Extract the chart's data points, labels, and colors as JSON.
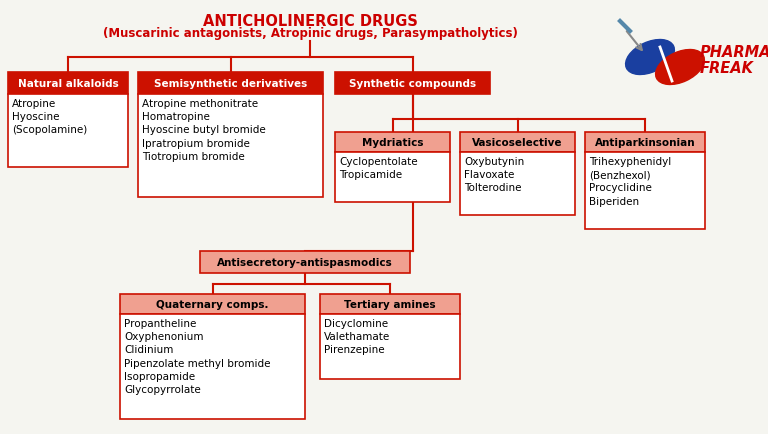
{
  "title_line1": "ANTICHOLINERGIC DRUGS",
  "title_line2": "(Muscarinic antagonists, Atropinic drugs, Parasympatholytics)",
  "title_color": "#cc0000",
  "bg_color": "#f5f5f0",
  "header_fill": "#cc1100",
  "header_text_color": "#ffffff",
  "subheader_fill": "#f0a090",
  "box_fill": "#ffffff",
  "box_edge": "#cc1100",
  "line_color": "#cc1100",
  "natural_header": "Natural alkaloids",
  "natural_items": "Atropine\nHyoscine\n(Scopolamine)",
  "semisyn_header": "Semisynthetic derivatives",
  "semisyn_items": "Atropine methonitrate\nHomatropine\nHyoscine butyl bromide\nIpratropium bromide\nTiotropium bromide",
  "synthetic_header": "Synthetic compounds",
  "mydriatics_header": "Mydriatics",
  "mydriatics_items": "Cyclopentolate\nTropicamide",
  "vasico_header": "Vasicoselective",
  "vasico_items": "Oxybutynin\nFlavoxate\nTolterodine",
  "antipark_header": "Antiparkinsonian",
  "antipark_items": "Trihexyphenidyl\n(Benzhexol)\nProcyclidine\nBiperiden",
  "antisec_header": "Antisecretory-antispasmodics",
  "quatern_header": "Quaternary comps.",
  "quatern_items": "Propantheline\nOxyphenonium\nClidinium\nPipenzolate methyl bromide\nIsopropamide\nGlycopyrrolate",
  "tertiary_header": "Tertiary amines",
  "tertiary_items": "Dicyclomine\nValethamate\nPirenzepine",
  "pharmacy_text": "PHARMACY\nFREAK"
}
